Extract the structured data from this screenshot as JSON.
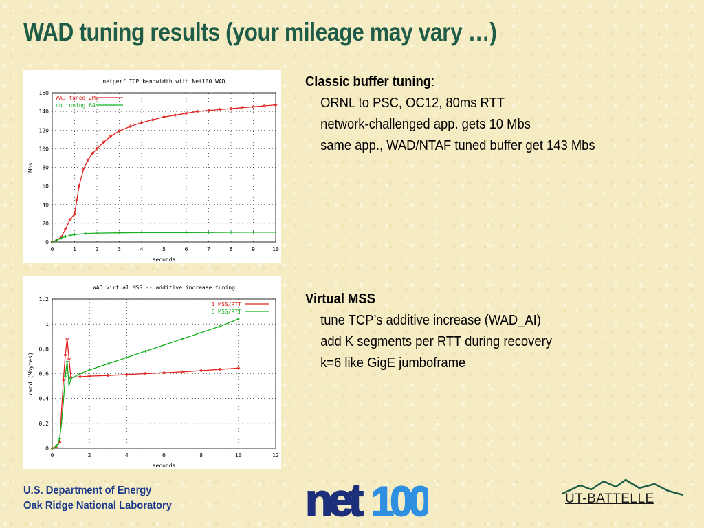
{
  "slide": {
    "title": "WAD tuning results  (your mileage may vary …)"
  },
  "blocks": [
    {
      "heading": "Classic buffer tuning",
      "heading_suffix": ":",
      "lines": [
        "ORNL to PSC,  OC12, 80ms RTT",
        "network-challenged app. gets 10 Mbs",
        "same app., WAD/NTAF tuned buffer get 143 Mbs"
      ]
    },
    {
      "heading": "Virtual MSS",
      "heading_suffix": "",
      "lines": [
        "tune TCP’s additive increase  (WAD_AI)",
        "add K segments per RTT during recovery",
        "k=6 like GigE jumboframe"
      ]
    }
  ],
  "footer": {
    "org_line1": "U.S. Department of Energy",
    "org_line2": "Oak Ridge National Laboratory",
    "net100_logo": "net100",
    "ut_battelle_logo": "UT-BATTELLE"
  },
  "colors": {
    "title": "#1e5c48",
    "footer_text": "#1c3a8a",
    "series_red": "#e0201c",
    "series_green": "#16b020",
    "logo_navy": "#1c2f7a",
    "logo_blue": "#2f8fe0"
  },
  "chart_data": [
    {
      "type": "line",
      "title": "netperf TCP bandwidth with Net100 WAD",
      "xlabel": "seconds",
      "ylabel": "Mbs",
      "xlim": [
        0,
        10
      ],
      "ylim": [
        0,
        160
      ],
      "xticks": [
        0,
        1,
        2,
        3,
        4,
        5,
        6,
        7,
        8,
        9,
        10
      ],
      "yticks": [
        0,
        20,
        40,
        60,
        80,
        100,
        120,
        140,
        160
      ],
      "grid": true,
      "legend": "top-left",
      "series": [
        {
          "name": "WAD-tuned 2MB",
          "color": "#e0201c",
          "x": [
            0,
            0.2,
            0.4,
            0.6,
            0.8,
            1.0,
            1.1,
            1.2,
            1.4,
            1.6,
            1.8,
            2.0,
            2.3,
            2.6,
            3.0,
            3.5,
            4.0,
            4.5,
            5.0,
            5.5,
            6.0,
            6.5,
            7.0,
            7.5,
            8.0,
            8.5,
            9.0,
            9.5,
            10.0
          ],
          "y": [
            0,
            2,
            5,
            14,
            24,
            30,
            45,
            60,
            78,
            88,
            95,
            100,
            107,
            113,
            119,
            124,
            128,
            131,
            134,
            136,
            138,
            140,
            141,
            142,
            143,
            144,
            145,
            146,
            147
          ]
        },
        {
          "name": "no tuning 64K",
          "color": "#16b020",
          "x": [
            0,
            0.2,
            0.4,
            0.6,
            0.8,
            1.0,
            1.5,
            2.0,
            3.0,
            4.0,
            5.0,
            6.0,
            7.0,
            8.0,
            9.0,
            10.0
          ],
          "y": [
            0,
            2,
            4,
            6,
            7,
            8,
            9,
            9.5,
            9.8,
            10,
            10,
            10,
            10.2,
            10.3,
            10.4,
            10.5
          ]
        }
      ]
    },
    {
      "type": "line",
      "title": "WAD virtual MSS --  additive increase tuning",
      "xlabel": "seconds",
      "ylabel": "cwnd (Mbytes)",
      "xlim": [
        0,
        12
      ],
      "ylim": [
        0,
        1.2
      ],
      "xticks": [
        0,
        2,
        4,
        6,
        8,
        10,
        12
      ],
      "yticks": [
        0,
        0.2,
        0.4,
        0.6,
        0.8,
        1,
        1.2
      ],
      "grid": true,
      "legend": "top-right",
      "series": [
        {
          "name": "1 MSS/RTT",
          "color": "#e0201c",
          "x": [
            0,
            0.2,
            0.4,
            0.6,
            0.7,
            0.8,
            0.9,
            1.0,
            1.5,
            2,
            3,
            4,
            5,
            6,
            7,
            8,
            9,
            10
          ],
          "y": [
            0,
            0.01,
            0.05,
            0.55,
            0.75,
            0.88,
            0.72,
            0.57,
            0.575,
            0.58,
            0.585,
            0.593,
            0.6,
            0.607,
            0.615,
            0.625,
            0.635,
            0.645
          ]
        },
        {
          "name": "6 MSS/RTT",
          "color": "#16b020",
          "x": [
            0,
            0.2,
            0.3,
            0.4,
            0.5,
            0.6,
            0.7,
            0.8,
            0.9,
            1.0,
            1.5,
            2,
            3,
            4,
            5,
            6,
            7,
            8,
            9,
            10
          ],
          "y": [
            0,
            0.01,
            0.03,
            0.08,
            0.2,
            0.38,
            0.58,
            0.7,
            0.5,
            0.56,
            0.6,
            0.63,
            0.68,
            0.73,
            0.78,
            0.83,
            0.88,
            0.93,
            0.98,
            1.04
          ]
        }
      ]
    }
  ]
}
